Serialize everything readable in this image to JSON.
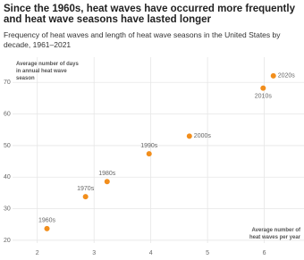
{
  "chart_data": {
    "type": "scatter",
    "title": "Since the 1960s, heat waves have occurred more frequently and heat wave seasons have lasted longer",
    "subtitle": "Frequency of heat waves and length of heat wave seasons in the United States by decade, 1961–2021",
    "x_label": "Average number of heat waves per year",
    "y_label": "Average number of days in annual heat wave season",
    "labels": [
      "1960s",
      "1970s",
      "1980s",
      "1990s",
      "2000s",
      "2010s",
      "2020s"
    ],
    "x": [
      2.17,
      2.85,
      3.23,
      3.97,
      4.68,
      5.98,
      6.16
    ],
    "values": [
      23.7,
      33.8,
      38.6,
      47.4,
      53.0,
      68.2,
      72.1
    ],
    "color": "#f28e1c",
    "xlim": [
      1.5,
      6.7
    ],
    "xticks": [
      2,
      3,
      4,
      5,
      6
    ],
    "ylim": [
      18,
      78
    ],
    "yticks": [
      20,
      30,
      40,
      50,
      60,
      70
    ],
    "grid": true
  }
}
